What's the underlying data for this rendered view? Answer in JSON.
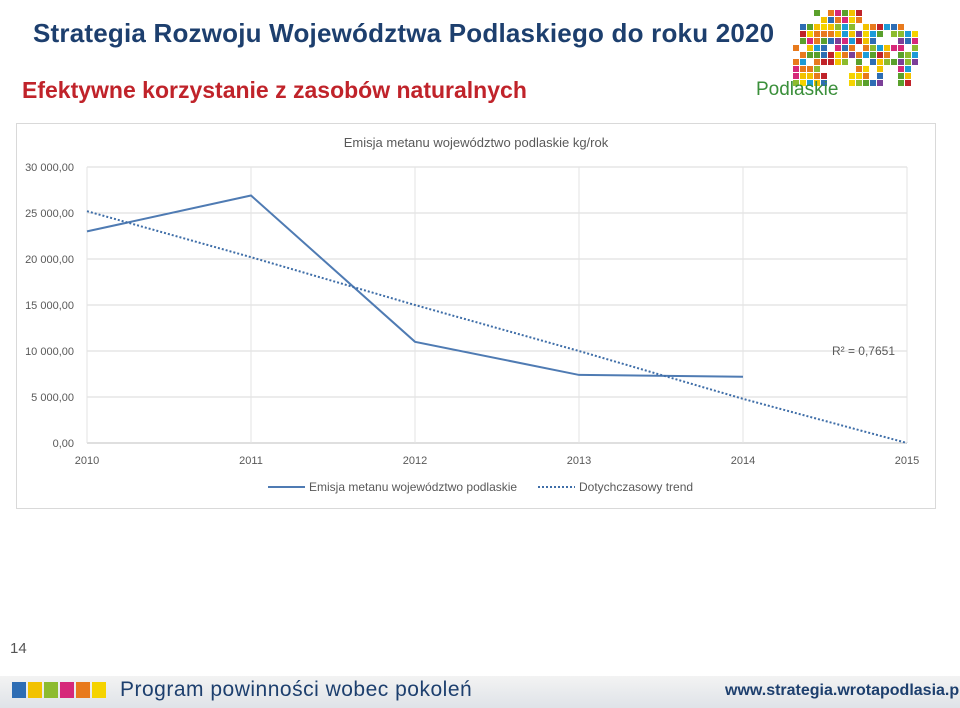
{
  "header": {
    "title": "Strategia Rozwoju Województwa Podlaskiego do roku 2020",
    "subtitle": "Efektywne korzystanie z zasobów naturalnych",
    "logo_text": "Podlaskie"
  },
  "page_number": "14",
  "footer": {
    "slogan": "Program powinności wobec pokoleń",
    "url": "www.strategia.wrotapodlasia.pl",
    "squares_colors": [
      "#2e6db4",
      "#f2c200",
      "#8dbb2f",
      "#d6287a",
      "#e87a1d",
      "#f5d300"
    ]
  },
  "colors": {
    "title": "#1d3f6e",
    "subtitle": "#c0232a",
    "series": "#4f7bb3",
    "trend": "#3f6ea8"
  },
  "chart_data": {
    "type": "line",
    "title": "Emisja metanu województwo podlaskie kg/rok",
    "x": [
      "2010",
      "2011",
      "2012",
      "2013",
      "2014",
      "2015"
    ],
    "ylim": [
      0,
      30000
    ],
    "yticks": [
      "0,00",
      "5 000,00",
      "10 000,00",
      "15 000,00",
      "20 000,00",
      "25 000,00",
      "30 000,00"
    ],
    "grid": true,
    "legend_position": "bottom",
    "series": [
      {
        "name": "Emisja metanu województwo podlaskie",
        "style": "solid",
        "values": [
          23000,
          26900,
          11000,
          7400,
          7200,
          null
        ]
      },
      {
        "name": "Dotychczasowy trend",
        "style": "dotted",
        "values": [
          25200,
          20200,
          15000,
          10000,
          4800,
          -200
        ]
      }
    ],
    "annotation": "R² = 0,7651"
  }
}
